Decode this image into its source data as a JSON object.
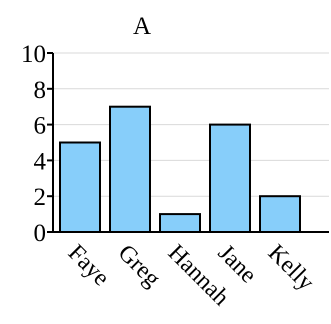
{
  "chart_data": {
    "type": "bar",
    "title": "A",
    "categories": [
      "Faye",
      "Greg",
      "Hannah",
      "Jane",
      "Kelly"
    ],
    "values": [
      5,
      7,
      1,
      6,
      2
    ],
    "ylim": [
      0,
      10
    ],
    "yticks": [
      "0",
      "2",
      "4",
      "6",
      "8",
      "10"
    ],
    "xlabel": "",
    "ylabel": "",
    "grid": "horizontal",
    "bar_color": "#87CEFA",
    "bar_edge_color": "#000000",
    "grid_color": "#d9d9d9"
  }
}
